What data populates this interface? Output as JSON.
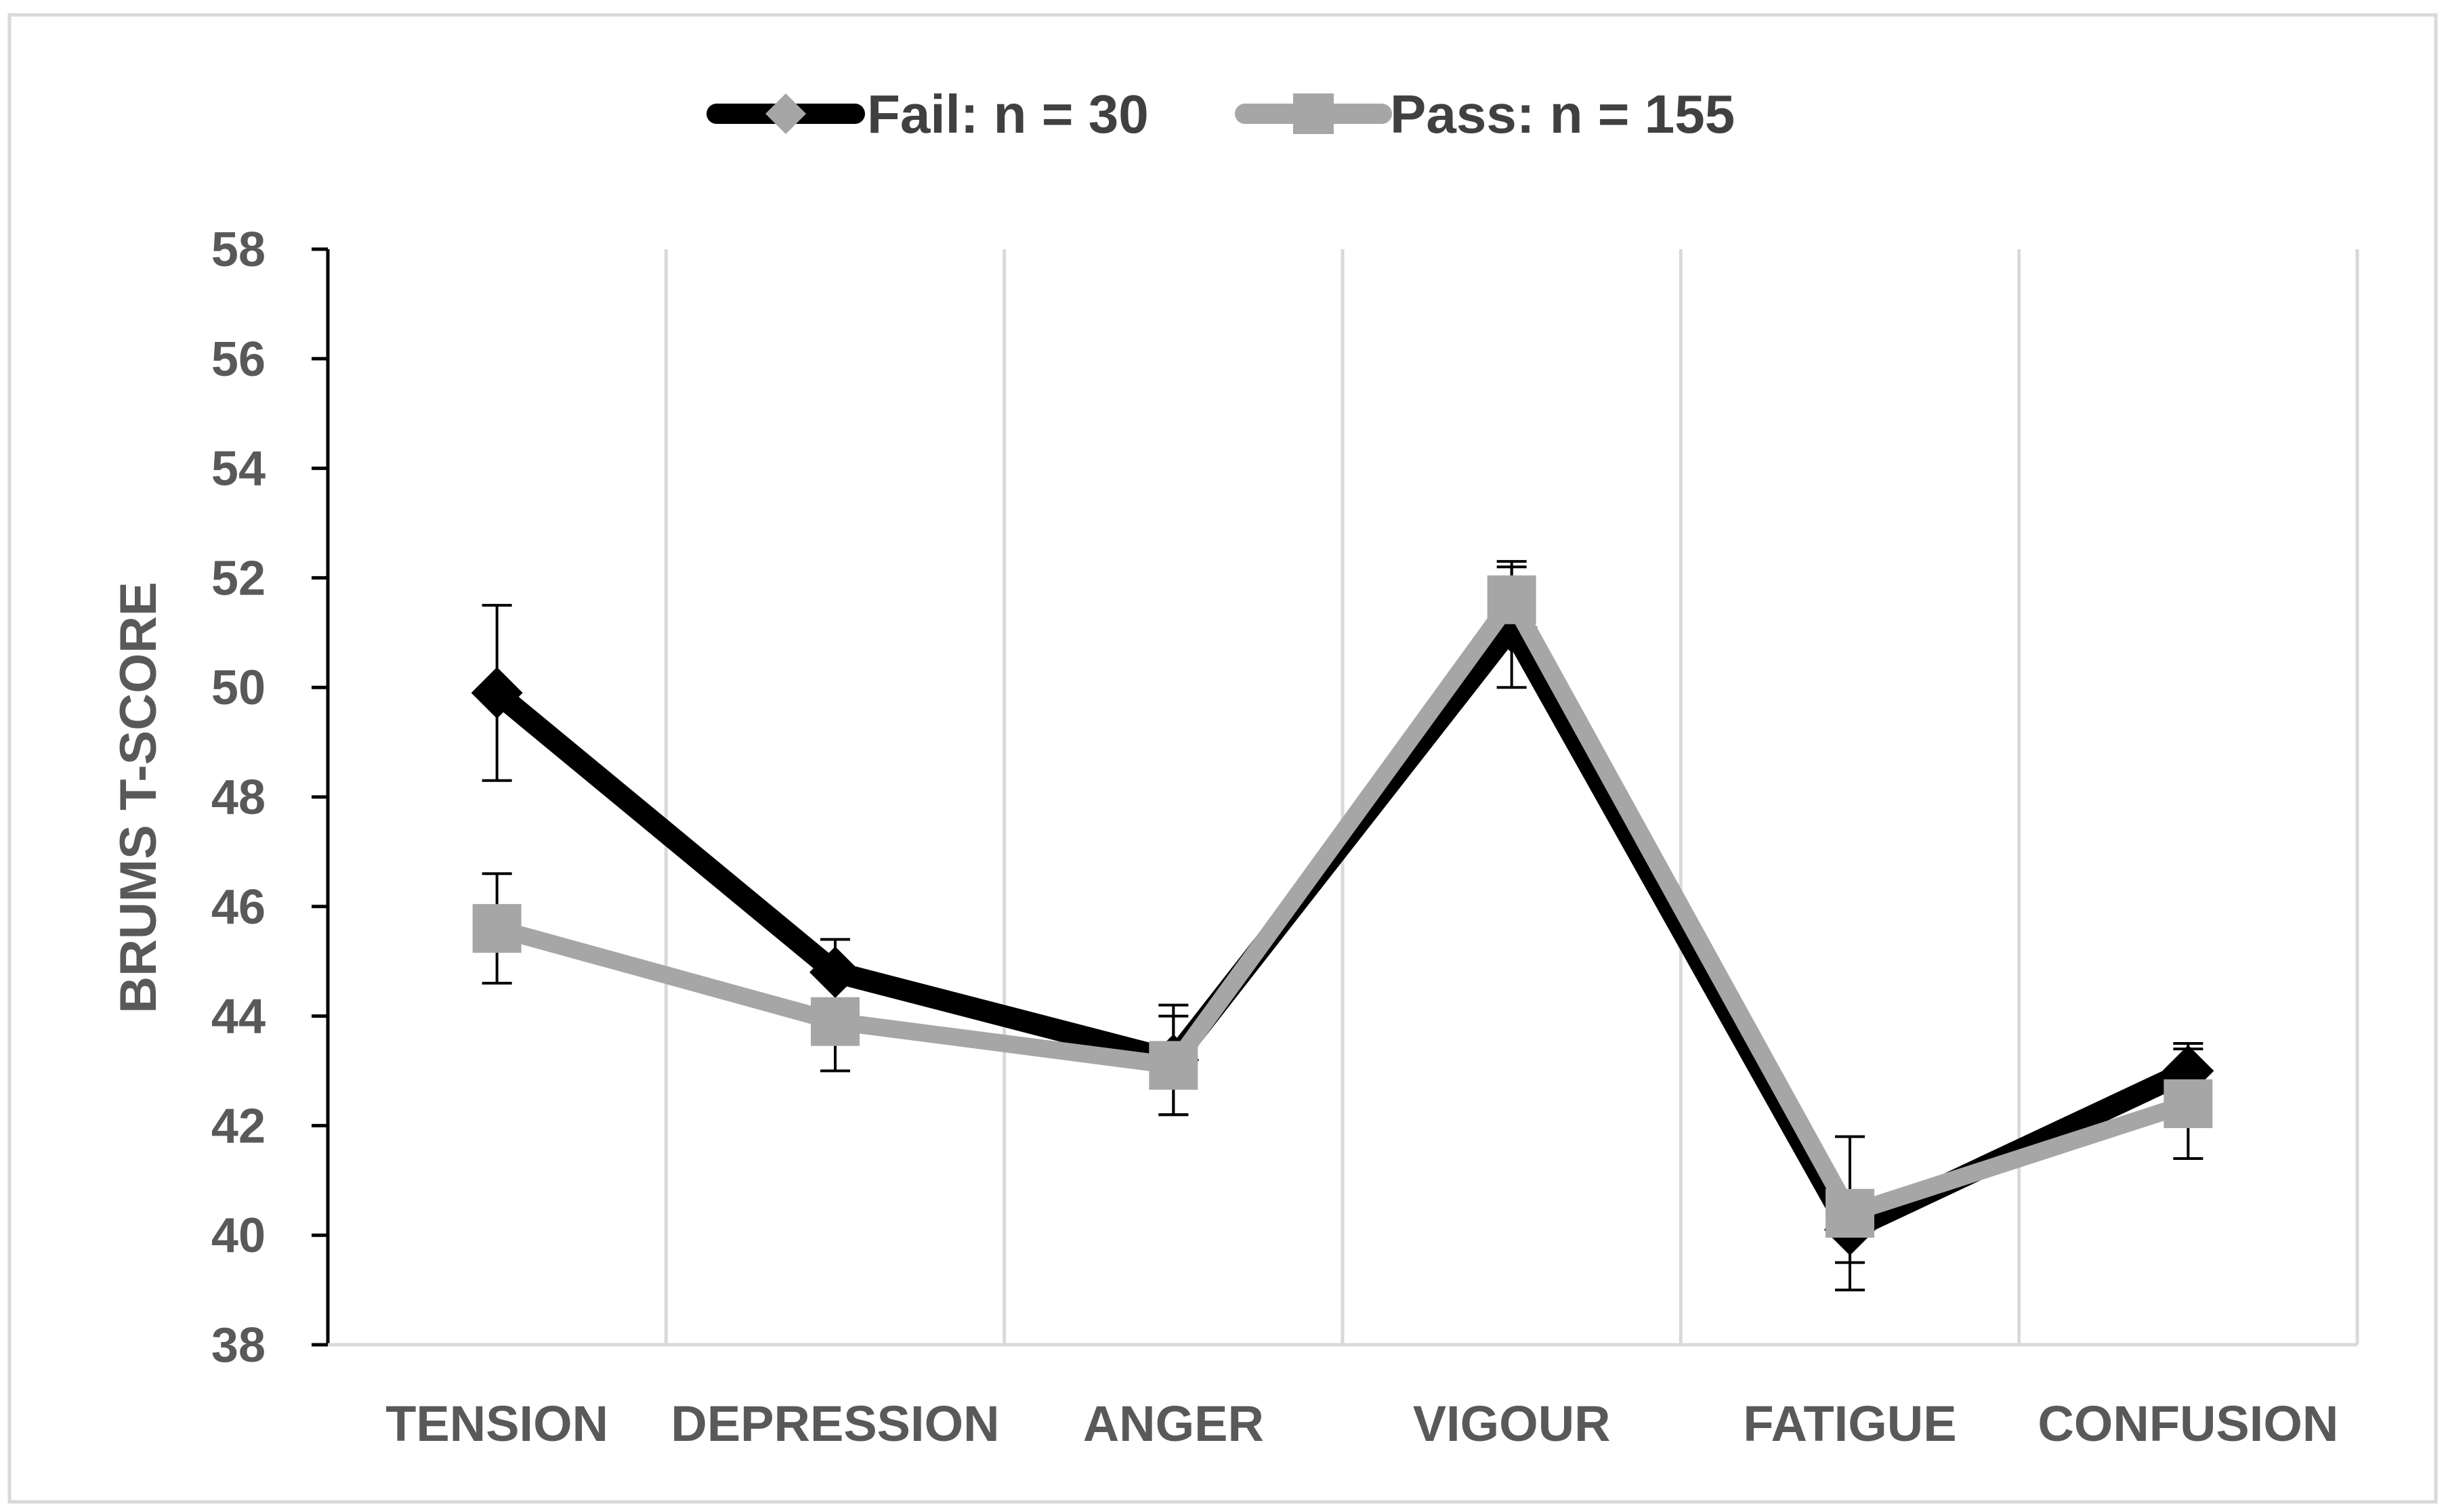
{
  "chart_data": {
    "type": "line",
    "ylabel": "BRUMS T-SCORE",
    "ylim": [
      38,
      58
    ],
    "yticks": [
      "38",
      "40",
      "42",
      "44",
      "46",
      "48",
      "50",
      "52",
      "54",
      "56",
      "58"
    ],
    "categories": [
      "TENSION",
      "DEPRESSION",
      "ANGER",
      "VIGOUR",
      "FATIGUE",
      "CONFUSION"
    ],
    "legend_position": "top-center",
    "grid": "vertical",
    "series": [
      {
        "name": "Fail: n = 30",
        "color": "#000000",
        "marker": "diamond",
        "marker_color": "#000000",
        "legend_marker_color": "#a6a6a6",
        "values": [
          49.9,
          44.8,
          43.2,
          51.1,
          40.1,
          43.0
        ],
        "error": [
          1.6,
          0.6,
          1.0,
          1.1,
          0.6,
          0.5
        ]
      },
      {
        "name": "Pass: n = 155",
        "color": "#a6a6a6",
        "marker": "square",
        "marker_color": "#a6a6a6",
        "legend_marker_color": "#a6a6a6",
        "values": [
          45.6,
          43.9,
          43.1,
          51.6,
          40.4,
          42.4
        ],
        "error": [
          1.0,
          0.9,
          0.9,
          0.7,
          1.4,
          1.0
        ]
      }
    ]
  }
}
